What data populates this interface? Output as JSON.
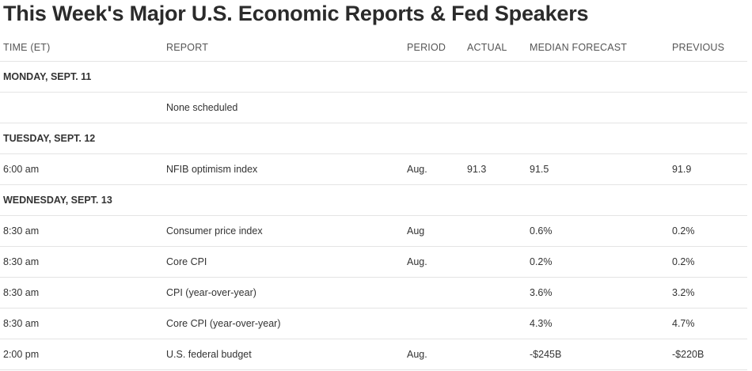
{
  "title": "This Week's Major U.S. Economic Reports & Fed Speakers",
  "columns": {
    "time": "TIME (ET)",
    "report": "REPORT",
    "period": "PERIOD",
    "actual": "ACTUAL",
    "median": "MEDIAN FORECAST",
    "previous": "PREVIOUS"
  },
  "days": [
    {
      "label": "MONDAY, SEPT. 11",
      "rows": [
        {
          "time": "",
          "report": "None scheduled",
          "period": "",
          "actual": "",
          "median": "",
          "previous": ""
        }
      ]
    },
    {
      "label": "TUESDAY, SEPT. 12",
      "rows": [
        {
          "time": "6:00 am",
          "report": "NFIB optimism index",
          "period": "Aug.",
          "actual": "91.3",
          "median": "91.5",
          "previous": "91.9"
        }
      ]
    },
    {
      "label": "WEDNESDAY, SEPT. 13",
      "rows": [
        {
          "time": "8:30 am",
          "report": "Consumer price index",
          "period": "Aug",
          "actual": "",
          "median": "0.6%",
          "previous": "0.2%"
        },
        {
          "time": "8:30 am",
          "report": "Core CPI",
          "period": "Aug.",
          "actual": "",
          "median": "0.2%",
          "previous": "0.2%"
        },
        {
          "time": "8:30 am",
          "report": "CPI (year-over-year)",
          "period": "",
          "actual": "",
          "median": "3.6%",
          "previous": "3.2%"
        },
        {
          "time": "8:30 am",
          "report": "Core CPI (year-over-year)",
          "period": "",
          "actual": "",
          "median": "4.3%",
          "previous": "4.7%"
        },
        {
          "time": "2:00 pm",
          "report": "U.S. federal budget",
          "period": "Aug.",
          "actual": "",
          "median": "-$245B",
          "previous": "-$220B"
        }
      ]
    }
  ]
}
